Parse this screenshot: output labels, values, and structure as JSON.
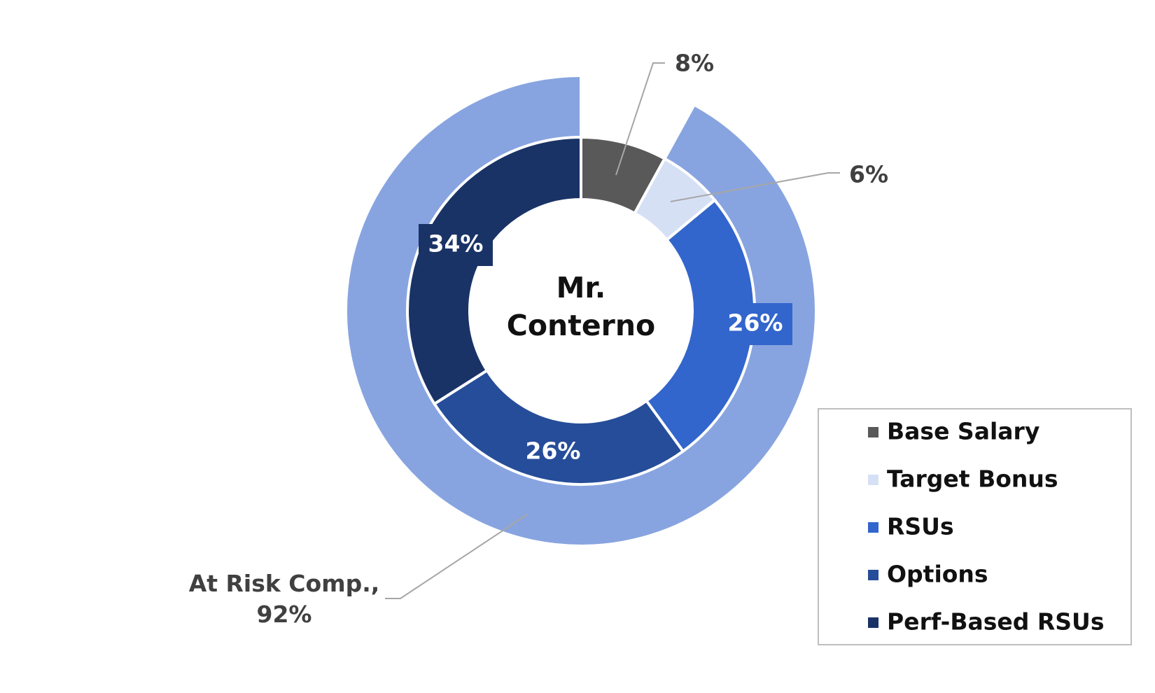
{
  "chart_data": {
    "type": "nested-donut",
    "title": "Mr. Conterno",
    "categories": [
      "Base Salary",
      "Target Bonus",
      "RSUs",
      "Options",
      "Perf-Based RSUs"
    ],
    "values": [
      8,
      6,
      26,
      26,
      34
    ],
    "value_labels": [
      "8%",
      "6%",
      "26%",
      "26%",
      "34%"
    ],
    "colors": [
      "#595959",
      "#d6e0f5",
      "#3366cc",
      "#264d99",
      "#1a3366"
    ],
    "outer": {
      "name": "At Risk Comp.,",
      "values": [
        92
      ],
      "value_labels": [
        "92%"
      ],
      "color": "#88a4e0"
    },
    "legend": "lower right"
  }
}
